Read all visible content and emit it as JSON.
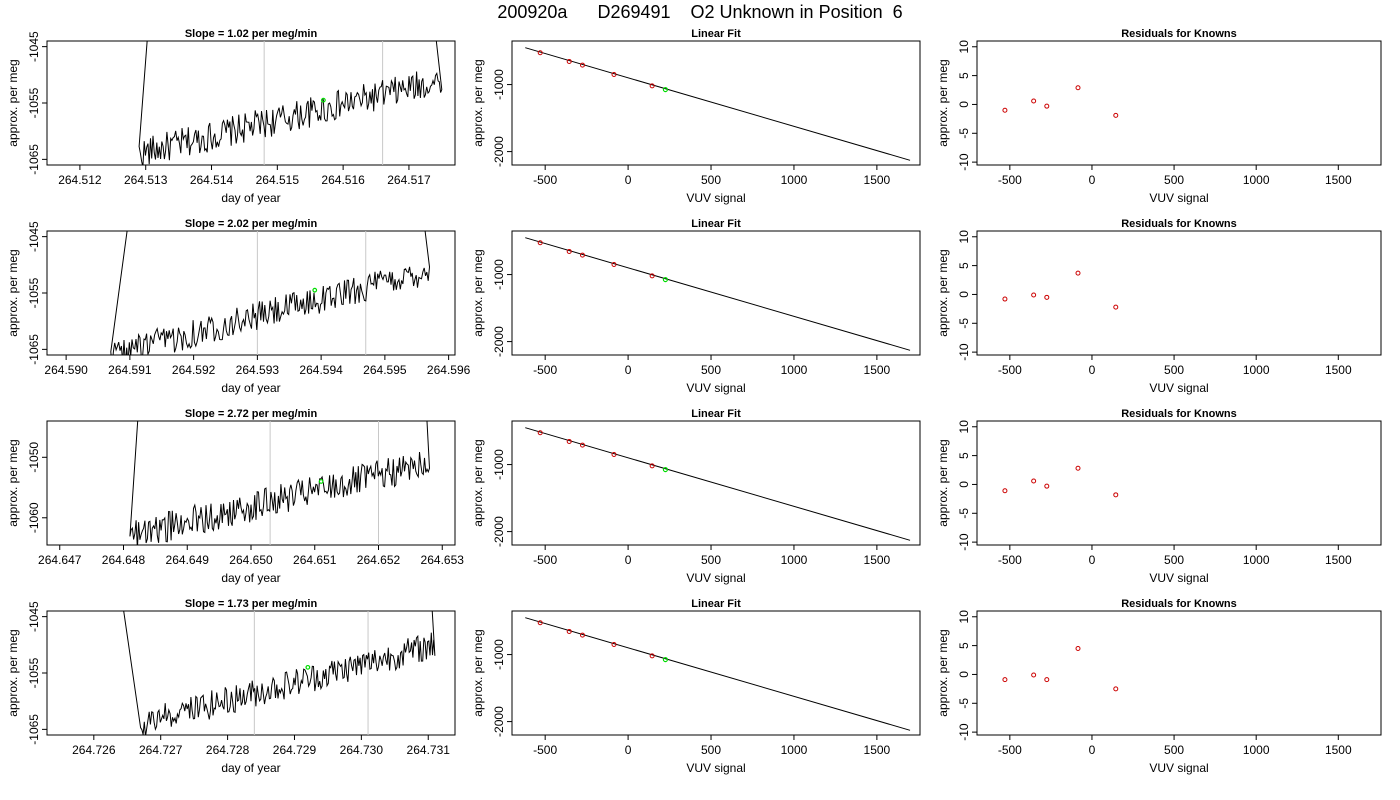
{
  "title": "200920a      D269491    O2 Unknown in Position  6",
  "colors": {
    "trace": "#000000",
    "marker": "#00dd00",
    "known": "#cc0000",
    "vline": "#c8c8c8"
  },
  "chart_data": [
    {
      "type": "line",
      "panel": "slope-1",
      "title": "Slope =  1.02  per meg/min",
      "xlabel": "day of year",
      "ylabel": "approx. per meg",
      "xlim": [
        264.5115,
        264.5177
      ],
      "ylim": [
        -1066,
        -1044
      ],
      "xticks": [
        264.512,
        264.513,
        264.514,
        264.515,
        264.516,
        264.517
      ],
      "xticklabels": [
        "264.512",
        "264.513",
        "264.514",
        "264.515",
        "264.516",
        "264.517"
      ],
      "yticks": [
        -1045,
        -1055,
        -1065
      ],
      "yticklabels": [
        "-1045",
        "-1055",
        "-1065"
      ],
      "vlines": [
        264.5148,
        264.5166
      ],
      "trace": {
        "x_start": 264.5129,
        "x_end": 264.5175,
        "start_level": -1064,
        "end_level": -1051,
        "noise": 1.6,
        "x_spike_in": 264.5131,
        "x_spike_out": 264.5173
      },
      "marker": {
        "x": 264.5157,
        "y": -1054.5
      }
    },
    {
      "type": "line",
      "panel": "fit-1",
      "title": "Linear Fit",
      "xlabel": "VUV signal",
      "ylabel": "approx. per meg",
      "xlim": [
        -700,
        1760
      ],
      "ylim": [
        -2200,
        -350
      ],
      "xticks": [
        -500,
        0,
        500,
        1000,
        1500
      ],
      "xticklabels": [
        "-500",
        "0",
        "500",
        "1000",
        "1500"
      ],
      "yticks": [
        -1000,
        -2000
      ],
      "yticklabels": [
        "-1000",
        "-2000"
      ],
      "line": [
        [
          -620,
          -450
        ],
        [
          1700,
          -2130
        ]
      ],
      "knowns": {
        "x": [
          -530,
          -355,
          -275,
          -85,
          145
        ],
        "y": [
          -525,
          -655,
          -710,
          -850,
          -1020
        ]
      },
      "unknown": {
        "x": 225,
        "y": -1075
      }
    },
    {
      "type": "scatter",
      "panel": "resid-1",
      "title": "Residuals for Knowns",
      "xlabel": "VUV signal",
      "ylabel": "approx. per meg",
      "xlim": [
        -700,
        1760
      ],
      "ylim": [
        -10.5,
        11
      ],
      "xticks": [
        -500,
        0,
        500,
        1000,
        1500
      ],
      "xticklabels": [
        "-500",
        "0",
        "500",
        "1000",
        "1500"
      ],
      "yticks": [
        10,
        5,
        0,
        -5,
        -10
      ],
      "yticklabels": [
        "10",
        "5",
        "0",
        "-5",
        "-10"
      ],
      "points": {
        "x": [
          -530,
          -355,
          -275,
          -85,
          145
        ],
        "y": [
          -1,
          0.6,
          -0.3,
          2.9,
          -1.9
        ]
      }
    },
    {
      "type": "line",
      "panel": "slope-2",
      "title": "Slope =  2.02  per meg/min",
      "xlabel": "day of year",
      "ylabel": "approx. per meg",
      "xlim": [
        264.5897,
        264.5961
      ],
      "ylim": [
        -1066,
        -1044
      ],
      "xticks": [
        264.59,
        264.591,
        264.592,
        264.593,
        264.594,
        264.595,
        264.596
      ],
      "xticklabels": [
        "264.590",
        "264.591",
        "264.592",
        "264.593",
        "264.594",
        "264.595",
        "264.596"
      ],
      "yticks": [
        -1045,
        -1055,
        -1065
      ],
      "yticklabels": [
        "-1045",
        "-1055",
        "-1065"
      ],
      "vlines": [
        264.593,
        264.5947
      ],
      "trace": {
        "x_start": 264.5907,
        "x_end": 264.5957,
        "start_level": -1066,
        "end_level": -1051,
        "noise": 1.5,
        "x_spike_in": 264.5911,
        "x_spike_out": 264.5955
      },
      "marker": {
        "x": 264.5939,
        "y": -1054.5
      }
    },
    {
      "type": "line",
      "panel": "fit-2",
      "title": "Linear Fit",
      "xlabel": "VUV signal",
      "ylabel": "approx. per meg",
      "xlim": [
        -700,
        1760
      ],
      "ylim": [
        -2200,
        -350
      ],
      "xticks": [
        -500,
        0,
        500,
        1000,
        1500
      ],
      "xticklabels": [
        "-500",
        "0",
        "500",
        "1000",
        "1500"
      ],
      "yticks": [
        -1000,
        -2000
      ],
      "yticklabels": [
        "-1000",
        "-2000"
      ],
      "line": [
        [
          -620,
          -450
        ],
        [
          1700,
          -2130
        ]
      ],
      "knowns": {
        "x": [
          -530,
          -355,
          -275,
          -85,
          145
        ],
        "y": [
          -525,
          -655,
          -710,
          -850,
          -1020
        ]
      },
      "unknown": {
        "x": 225,
        "y": -1075
      }
    },
    {
      "type": "scatter",
      "panel": "resid-2",
      "title": "Residuals for Knowns",
      "xlabel": "VUV signal",
      "ylabel": "approx. per meg",
      "xlim": [
        -700,
        1760
      ],
      "ylim": [
        -10.5,
        11
      ],
      "xticks": [
        -500,
        0,
        500,
        1000,
        1500
      ],
      "xticklabels": [
        "-500",
        "0",
        "500",
        "1000",
        "1500"
      ],
      "yticks": [
        10,
        5,
        0,
        -5,
        -10
      ],
      "yticklabels": [
        "10",
        "5",
        "0",
        "-5",
        "-10"
      ],
      "points": {
        "x": [
          -530,
          -355,
          -275,
          -85,
          145
        ],
        "y": [
          -0.8,
          -0.1,
          -0.5,
          3.7,
          -2.2
        ]
      }
    },
    {
      "type": "line",
      "panel": "slope-3",
      "title": "Slope =  2.72  per meg/min",
      "xlabel": "day of year",
      "ylabel": "approx. per meg",
      "xlim": [
        264.6468,
        264.6532
      ],
      "ylim": [
        -1064.5,
        -1044
      ],
      "xticks": [
        264.647,
        264.648,
        264.649,
        264.65,
        264.651,
        264.652,
        264.653
      ],
      "xticklabels": [
        "264.647",
        "264.648",
        "264.649",
        "264.650",
        "264.651",
        "264.652",
        "264.653"
      ],
      "yticks": [
        -1050,
        -1060
      ],
      "yticklabels": [
        "-1050",
        "-1060"
      ],
      "vlines": [
        264.6503,
        264.652
      ],
      "trace": {
        "x_start": 264.6481,
        "x_end": 264.6528,
        "start_level": -1063,
        "end_level": -1051,
        "noise": 1.5,
        "x_spike_in": 264.6483,
        "x_spike_out": 264.6527
      },
      "marker": {
        "x": 264.6511,
        "y": -1054
      }
    },
    {
      "type": "line",
      "panel": "fit-3",
      "title": "Linear Fit",
      "xlabel": "VUV signal",
      "ylabel": "approx. per meg",
      "xlim": [
        -700,
        1760
      ],
      "ylim": [
        -2200,
        -350
      ],
      "xticks": [
        -500,
        0,
        500,
        1000,
        1500
      ],
      "xticklabels": [
        "-500",
        "0",
        "500",
        "1000",
        "1500"
      ],
      "yticks": [
        -1000,
        -2000
      ],
      "yticklabels": [
        "-1000",
        "-2000"
      ],
      "line": [
        [
          -620,
          -450
        ],
        [
          1700,
          -2130
        ]
      ],
      "knowns": {
        "x": [
          -530,
          -355,
          -275,
          -85,
          145
        ],
        "y": [
          -525,
          -655,
          -710,
          -850,
          -1020
        ]
      },
      "unknown": {
        "x": 225,
        "y": -1075
      }
    },
    {
      "type": "scatter",
      "panel": "resid-3",
      "title": "Residuals for Knowns",
      "xlabel": "VUV signal",
      "ylabel": "approx. per meg",
      "xlim": [
        -700,
        1760
      ],
      "ylim": [
        -10.5,
        11
      ],
      "xticks": [
        -500,
        0,
        500,
        1000,
        1500
      ],
      "xticklabels": [
        "-500",
        "0",
        "500",
        "1000",
        "1500"
      ],
      "yticks": [
        10,
        5,
        0,
        -5,
        -10
      ],
      "yticklabels": [
        "10",
        "5",
        "0",
        "-5",
        "-10"
      ],
      "points": {
        "x": [
          -530,
          -355,
          -275,
          -85,
          145
        ],
        "y": [
          -1.1,
          0.6,
          -0.3,
          2.8,
          -1.8
        ]
      }
    },
    {
      "type": "line",
      "panel": "slope-4",
      "title": "Slope =  1.73  per meg/min",
      "xlabel": "day of year",
      "ylabel": "approx. per meg",
      "xlim": [
        264.7253,
        264.7314
      ],
      "ylim": [
        -1066,
        -1044
      ],
      "xticks": [
        264.726,
        264.727,
        264.728,
        264.729,
        264.73,
        264.731
      ],
      "xticklabels": [
        "264.726",
        "264.727",
        "264.728",
        "264.729",
        "264.730",
        "264.731"
      ],
      "yticks": [
        -1045,
        -1055,
        -1065
      ],
      "yticklabels": [
        "-1045",
        "-1055",
        "-1065"
      ],
      "vlines": [
        264.7284,
        264.7301
      ],
      "trace": {
        "x_start": 264.7267,
        "x_end": 264.7311,
        "start_level": -1064,
        "end_level": -1050,
        "noise": 1.5,
        "x_spike_in": 264.7263,
        "x_spike_out": 264.731
      },
      "marker": {
        "x": 264.7292,
        "y": -1054
      }
    },
    {
      "type": "line",
      "panel": "fit-4",
      "title": "Linear Fit",
      "xlabel": "VUV signal",
      "ylabel": "approx. per meg",
      "xlim": [
        -700,
        1760
      ],
      "ylim": [
        -2200,
        -350
      ],
      "xticks": [
        -500,
        0,
        500,
        1000,
        1500
      ],
      "xticklabels": [
        "-500",
        "0",
        "500",
        "1000",
        "1500"
      ],
      "yticks": [
        -1000,
        -2000
      ],
      "yticklabels": [
        "-1000",
        "-2000"
      ],
      "line": [
        [
          -620,
          -450
        ],
        [
          1700,
          -2130
        ]
      ],
      "knowns": {
        "x": [
          -530,
          -355,
          -275,
          -85,
          145
        ],
        "y": [
          -525,
          -655,
          -710,
          -850,
          -1020
        ]
      },
      "unknown": {
        "x": 225,
        "y": -1075
      }
    },
    {
      "type": "scatter",
      "panel": "resid-4",
      "title": "Residuals for Knowns",
      "xlabel": "VUV signal",
      "ylabel": "approx. per meg",
      "xlim": [
        -700,
        1760
      ],
      "ylim": [
        -10.5,
        11
      ],
      "xticks": [
        -500,
        0,
        500,
        1000,
        1500
      ],
      "xticklabels": [
        "-500",
        "0",
        "500",
        "1000",
        "1500"
      ],
      "yticks": [
        10,
        5,
        0,
        -5,
        -10
      ],
      "yticklabels": [
        "10",
        "5",
        "0",
        "-5",
        "-10"
      ],
      "points": {
        "x": [
          -530,
          -355,
          -275,
          -85,
          145
        ],
        "y": [
          -0.9,
          -0.1,
          -0.9,
          4.5,
          -2.5
        ]
      }
    }
  ]
}
